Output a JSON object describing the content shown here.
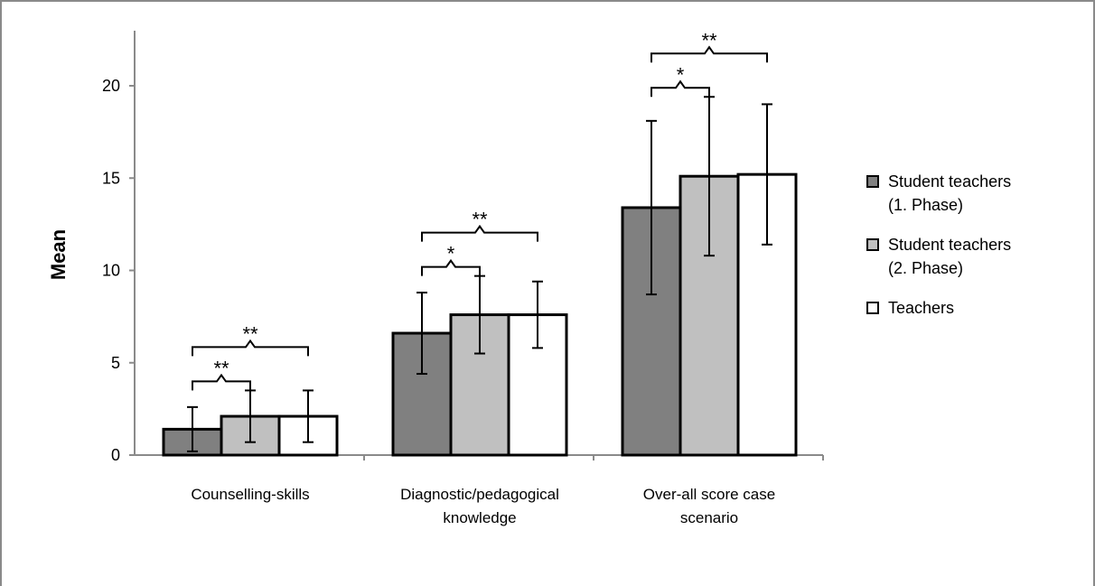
{
  "chart_data": {
    "type": "bar",
    "ylabel": "Mean",
    "ylim": [
      0,
      23
    ],
    "yticks": [
      0,
      5,
      10,
      15,
      20
    ],
    "categories": [
      [
        "Counselling-skills"
      ],
      [
        "Diagnostic/pedagogical",
        "knowledge"
      ],
      [
        "Over-all score case",
        "scenario"
      ]
    ],
    "series": [
      {
        "name": "Student teachers (1. Phase)",
        "legend_lines": [
          "Student teachers",
          "(1. Phase)"
        ],
        "color": "#808080",
        "values": [
          1.4,
          6.6,
          13.4
        ],
        "error": [
          1.2,
          2.2,
          4.7
        ]
      },
      {
        "name": "Student teachers (2. Phase)",
        "legend_lines": [
          "Student teachers",
          "(2. Phase)"
        ],
        "color": "#c0c0c0",
        "values": [
          2.1,
          7.6,
          15.1
        ],
        "error": [
          1.4,
          2.1,
          4.3
        ]
      },
      {
        "name": "Teachers",
        "legend_lines": [
          "Teachers"
        ],
        "color": "#ffffff",
        "values": [
          2.1,
          7.6,
          15.2
        ],
        "error": [
          1.4,
          1.8,
          3.8
        ]
      }
    ],
    "significance": [
      {
        "category": 0,
        "from": 0,
        "to": 1,
        "label": "**",
        "level": 1
      },
      {
        "category": 0,
        "from": 0,
        "to": 2,
        "label": "**",
        "level": 2
      },
      {
        "category": 1,
        "from": 0,
        "to": 1,
        "label": "*",
        "level": 1
      },
      {
        "category": 1,
        "from": 0,
        "to": 2,
        "label": "**",
        "level": 2
      },
      {
        "category": 2,
        "from": 0,
        "to": 1,
        "label": "*",
        "level": 1
      },
      {
        "category": 2,
        "from": 0,
        "to": 2,
        "label": "**",
        "level": 2
      }
    ],
    "grid": false,
    "legend_position": "right"
  }
}
